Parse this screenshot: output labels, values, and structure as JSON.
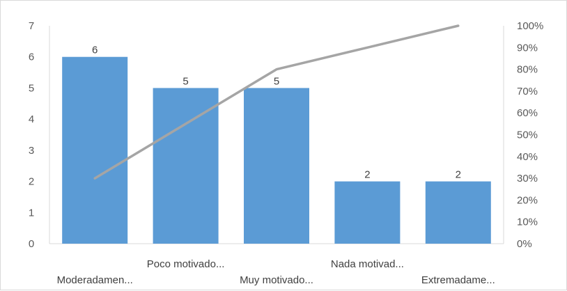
{
  "chart_data": {
    "type": "bar",
    "categories": [
      "Moderadamen...",
      "Poco motivado...",
      "Muy motivado...",
      "Nada motivad...",
      "Extremadame..."
    ],
    "series": [
      {
        "type": "bar",
        "values": [
          6,
          5,
          5,
          2,
          2
        ],
        "color": "#5b9bd5",
        "axis": "left"
      },
      {
        "type": "line",
        "values": [
          30,
          55,
          80,
          90,
          100
        ],
        "color": "#a5a5a5",
        "axis": "right",
        "unit": "%"
      }
    ],
    "data_labels": [
      "6",
      "5",
      "5",
      "2",
      "2"
    ],
    "ylim": [
      0,
      7
    ],
    "y_ticks": [
      "0",
      "1",
      "2",
      "3",
      "4",
      "5",
      "6",
      "7"
    ],
    "y2lim": [
      0,
      100
    ],
    "y2_ticks": [
      "0%",
      "10%",
      "20%",
      "30%",
      "40%",
      "50%",
      "60%",
      "70%",
      "80%",
      "90%",
      "100%"
    ],
    "grid": false,
    "legend": "none"
  }
}
